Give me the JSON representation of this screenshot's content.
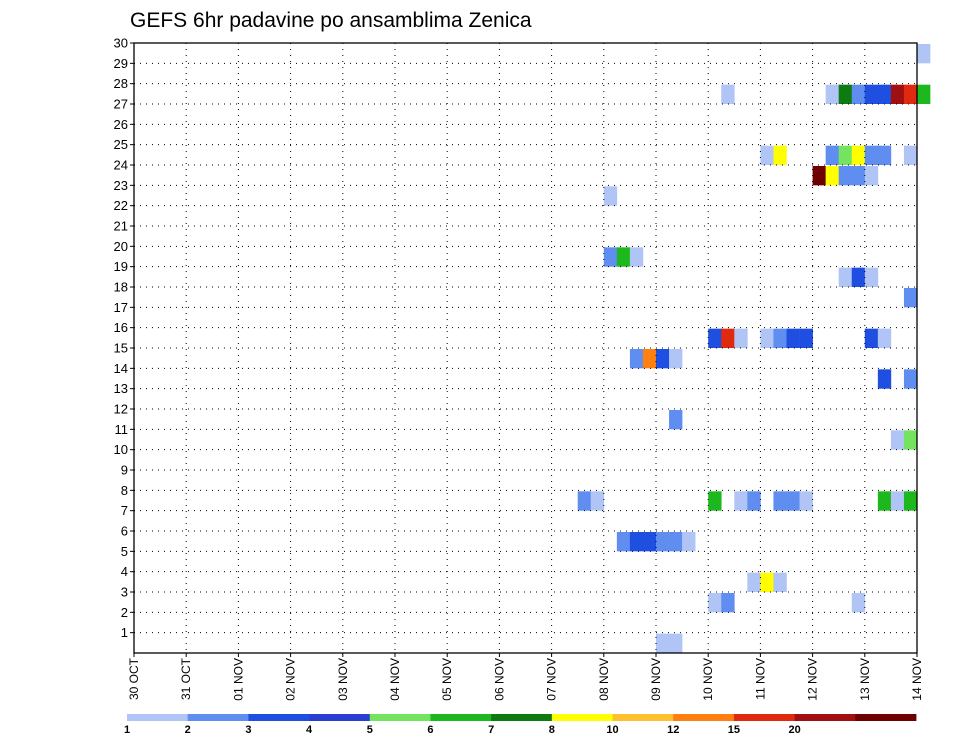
{
  "chart_data": {
    "type": "heatmap",
    "title": "GEFS 6hr padavine po ansamblima Zenica",
    "xlabel": "",
    "ylabel": "",
    "x_tick_labels": [
      "30 OCT",
      "31 OCT",
      "01 NOV",
      "02 NOV",
      "03 NOV",
      "04 NOV",
      "05 NOV",
      "06 NOV",
      "07 NOV",
      "08 NOV",
      "09 NOV",
      "10 NOV",
      "11 NOV",
      "12 NOV",
      "13 NOV",
      "14 NOV"
    ],
    "x_unit": "6-hour steps from 30 OCT",
    "y_tick_labels": [
      "1",
      "2",
      "3",
      "4",
      "5",
      "6",
      "7",
      "8",
      "9",
      "10",
      "11",
      "12",
      "13",
      "14",
      "15",
      "16",
      "17",
      "18",
      "19",
      "20",
      "21",
      "22",
      "23",
      "24",
      "25",
      "26",
      "27",
      "28",
      "29",
      "30"
    ],
    "grid": true,
    "legend_position": "bottom",
    "legend": {
      "labels": [
        "1",
        "2",
        "3",
        "4",
        "5",
        "6",
        "7",
        "8",
        "10",
        "12",
        "15",
        "20"
      ],
      "colors": [
        "#b0c4f5",
        "#5f8ef0",
        "#1e4fe0",
        "#2a3fd0",
        "#74e460",
        "#1db81d",
        "#0d7a12",
        "#ffff00",
        "#ffc030",
        "#ff7f10",
        "#e02a10",
        "#a01010",
        "#6e0000"
      ]
    },
    "cells": [
      {
        "x": 40,
        "y": 0,
        "c": 0
      },
      {
        "x": 41,
        "y": 0,
        "c": 0
      },
      {
        "x": 44,
        "y": 2,
        "c": 0
      },
      {
        "x": 45,
        "y": 2,
        "c": 1
      },
      {
        "x": 55,
        "y": 2,
        "c": 0
      },
      {
        "x": 47,
        "y": 3,
        "c": 0
      },
      {
        "x": 48,
        "y": 3,
        "c": 7
      },
      {
        "x": 49,
        "y": 3,
        "c": 0
      },
      {
        "x": 37,
        "y": 5,
        "c": 1
      },
      {
        "x": 38,
        "y": 5,
        "c": 2
      },
      {
        "x": 39,
        "y": 5,
        "c": 2
      },
      {
        "x": 40,
        "y": 5,
        "c": 1
      },
      {
        "x": 41,
        "y": 5,
        "c": 1
      },
      {
        "x": 42,
        "y": 5,
        "c": 0
      },
      {
        "x": 34,
        "y": 7,
        "c": 1
      },
      {
        "x": 35,
        "y": 7,
        "c": 0
      },
      {
        "x": 44,
        "y": 7,
        "c": 5
      },
      {
        "x": 46,
        "y": 7,
        "c": 0
      },
      {
        "x": 47,
        "y": 7,
        "c": 1
      },
      {
        "x": 49,
        "y": 7,
        "c": 1
      },
      {
        "x": 50,
        "y": 7,
        "c": 1
      },
      {
        "x": 51,
        "y": 7,
        "c": 0
      },
      {
        "x": 57,
        "y": 7,
        "c": 5
      },
      {
        "x": 58,
        "y": 7,
        "c": 0
      },
      {
        "x": 59,
        "y": 7,
        "c": 5
      },
      {
        "x": 58,
        "y": 10,
        "c": 0
      },
      {
        "x": 59,
        "y": 10,
        "c": 4
      },
      {
        "x": 41,
        "y": 11,
        "c": 1
      },
      {
        "x": 57,
        "y": 13,
        "c": 2
      },
      {
        "x": 59,
        "y": 13,
        "c": 1
      },
      {
        "x": 38,
        "y": 14,
        "c": 1
      },
      {
        "x": 39,
        "y": 14,
        "c": 9
      },
      {
        "x": 40,
        "y": 14,
        "c": 2
      },
      {
        "x": 41,
        "y": 14,
        "c": 0
      },
      {
        "x": 44,
        "y": 15,
        "c": 2
      },
      {
        "x": 45,
        "y": 15,
        "c": 10
      },
      {
        "x": 46,
        "y": 15,
        "c": 0
      },
      {
        "x": 48,
        "y": 15,
        "c": 0
      },
      {
        "x": 49,
        "y": 15,
        "c": 1
      },
      {
        "x": 50,
        "y": 15,
        "c": 2
      },
      {
        "x": 51,
        "y": 15,
        "c": 2
      },
      {
        "x": 56,
        "y": 15,
        "c": 2
      },
      {
        "x": 57,
        "y": 15,
        "c": 0
      },
      {
        "x": 59,
        "y": 17,
        "c": 1
      },
      {
        "x": 54,
        "y": 18,
        "c": 0
      },
      {
        "x": 55,
        "y": 18,
        "c": 2
      },
      {
        "x": 56,
        "y": 18,
        "c": 0
      },
      {
        "x": 36,
        "y": 19,
        "c": 1
      },
      {
        "x": 37,
        "y": 19,
        "c": 5
      },
      {
        "x": 38,
        "y": 19,
        "c": 0
      },
      {
        "x": 36,
        "y": 22,
        "c": 0
      },
      {
        "x": 52,
        "y": 23,
        "c": 12
      },
      {
        "x": 53,
        "y": 23,
        "c": 7
      },
      {
        "x": 54,
        "y": 23,
        "c": 1
      },
      {
        "x": 55,
        "y": 23,
        "c": 1
      },
      {
        "x": 56,
        "y": 23,
        "c": 0
      },
      {
        "x": 48,
        "y": 24,
        "c": 0
      },
      {
        "x": 49,
        "y": 24,
        "c": 7
      },
      {
        "x": 53,
        "y": 24,
        "c": 1
      },
      {
        "x": 54,
        "y": 24,
        "c": 4
      },
      {
        "x": 55,
        "y": 24,
        "c": 7
      },
      {
        "x": 56,
        "y": 24,
        "c": 1
      },
      {
        "x": 57,
        "y": 24,
        "c": 1
      },
      {
        "x": 59,
        "y": 24,
        "c": 0
      },
      {
        "x": 45,
        "y": 27,
        "c": 0
      },
      {
        "x": 53,
        "y": 27,
        "c": 0
      },
      {
        "x": 54,
        "y": 27,
        "c": 6
      },
      {
        "x": 55,
        "y": 27,
        "c": 1
      },
      {
        "x": 56,
        "y": 27,
        "c": 2
      },
      {
        "x": 57,
        "y": 27,
        "c": 2
      },
      {
        "x": 58,
        "y": 27,
        "c": 11
      },
      {
        "x": 59,
        "y": 27,
        "c": 10
      },
      {
        "x": 60,
        "y": 27,
        "c": 5
      },
      {
        "x": 60,
        "y": 29,
        "c": 0
      }
    ]
  }
}
